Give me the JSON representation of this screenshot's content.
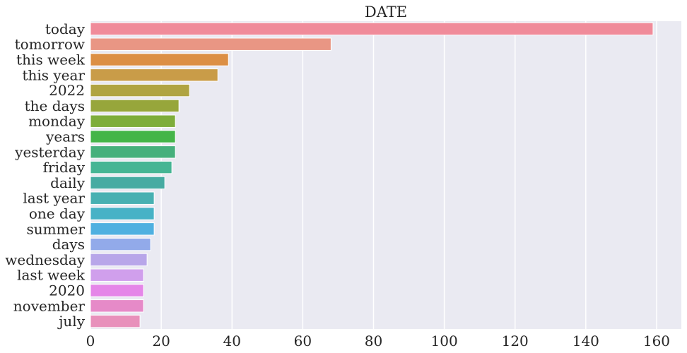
{
  "chart_data": {
    "type": "bar",
    "orientation": "horizontal",
    "title": "DATE",
    "xlabel": "",
    "ylabel": "",
    "categories": [
      "today",
      "tomorrow",
      "this week",
      "this year",
      "2022",
      "the days",
      "monday",
      "years",
      "yesterday",
      "friday",
      "daily",
      "last year",
      "one day",
      "summer",
      "days",
      "wednesday",
      "last week",
      "2020",
      "november",
      "july"
    ],
    "values": [
      159,
      68,
      39,
      36,
      28,
      25,
      24,
      24,
      24,
      23,
      21,
      18,
      18,
      18,
      17,
      16,
      15,
      15,
      15,
      14
    ],
    "colors": [
      "#f08b9a",
      "#e99684",
      "#dc8f45",
      "#c99c48",
      "#b0a442",
      "#97a63b",
      "#7ead3b",
      "#44b548",
      "#46b07c",
      "#46b594",
      "#46aba2",
      "#47b0b2",
      "#47b2c6",
      "#4fb0e0",
      "#92aaea",
      "#b8a6e9",
      "#d09fec",
      "#e586e8",
      "#e68ac8",
      "#e890bb"
    ],
    "xticks": [
      0,
      20,
      40,
      60,
      80,
      100,
      120,
      140,
      160
    ],
    "xlim": [
      0,
      167
    ],
    "grid": true,
    "background": "#eaeaf2"
  }
}
